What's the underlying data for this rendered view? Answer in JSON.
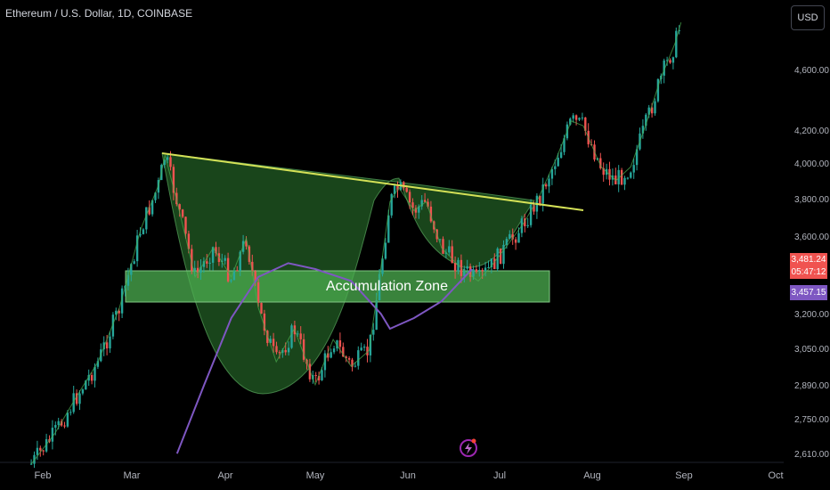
{
  "header": {
    "symbol_title": "Ethereum / U.S. Dollar, 1D, COINBASE",
    "currency_button": "USD"
  },
  "badges": {
    "last_price": "3,481.24",
    "countdown": "05:47:12",
    "ma_value": "3,457.15"
  },
  "annotations": {
    "zone_label": "Accumulation Zone"
  },
  "colors": {
    "background": "#000000",
    "up": "#26a69a",
    "down": "#ef5350",
    "moving_average": "#7e57c2",
    "trendline": "#c9e265",
    "zone_fill": "#4caf50",
    "pattern_fill": "#2e7d32"
  },
  "chart_data": {
    "type": "candlestick",
    "title": "Ethereum / U.S. Dollar, 1D, COINBASE",
    "x_axis": {
      "tick_labels": [
        "Feb",
        "Mar",
        "Apr",
        "May",
        "Jun",
        "Jul",
        "Aug",
        "Sep",
        "Oct"
      ]
    },
    "y_axis": {
      "scale": "log",
      "tick_labels": [
        "4,600.00",
        "4,200.00",
        "4,000.00",
        "3,800.00",
        "3,600.00",
        "3,200.00",
        "3,050.00",
        "2,890.00",
        "2,750.00",
        "2,610.00"
      ],
      "ylim": [
        2560,
        5000
      ]
    },
    "series": [
      {
        "kind": "price",
        "points": [
          [
            "Jan 28",
            2580
          ],
          [
            "Feb 05",
            2700
          ],
          [
            "Feb 12",
            2850
          ],
          [
            "Feb 19",
            3000
          ],
          [
            "Feb 26",
            3250
          ],
          [
            "Mar 04",
            3650
          ],
          [
            "Mar 10",
            3900
          ],
          [
            "Mar 12",
            4070
          ],
          [
            "Mar 16",
            3800
          ],
          [
            "Mar 22",
            3400
          ],
          [
            "Mar 28",
            3550
          ],
          [
            "Apr 03",
            3400
          ],
          [
            "Apr 08",
            3600
          ],
          [
            "Apr 12",
            3250
          ],
          [
            "Apr 18",
            3000
          ],
          [
            "Apr 24",
            3150
          ],
          [
            "May 01",
            2900
          ],
          [
            "May 07",
            3100
          ],
          [
            "May 13",
            2980
          ],
          [
            "May 19",
            3050
          ],
          [
            "May 23",
            3450
          ],
          [
            "May 26",
            3800
          ],
          [
            "May 29",
            3880
          ],
          [
            "Jun 03",
            3750
          ],
          [
            "Jun 07",
            3800
          ],
          [
            "Jun 12",
            3550
          ],
          [
            "Jun 18",
            3450
          ],
          [
            "Jun 24",
            3380
          ],
          [
            "Jun 28",
            3450
          ],
          [
            "Jul 03",
            3550
          ],
          [
            "Jul 09",
            3680
          ],
          [
            "Jul 14",
            3820
          ],
          [
            "Jul 20",
            4050
          ],
          [
            "Jul 25",
            4280
          ],
          [
            "Jul 29",
            4250
          ],
          [
            "Aug 04",
            4000
          ],
          [
            "Aug 09",
            3920
          ],
          [
            "Aug 14",
            4000
          ],
          [
            "Aug 19",
            4250
          ],
          [
            "Aug 24",
            4550
          ],
          [
            "Aug 29",
            4800
          ],
          [
            "Aug 31",
            4950
          ]
        ]
      },
      {
        "kind": "moving_average",
        "points": [
          [
            "Mar 16",
            2620
          ],
          [
            "Mar 25",
            2900
          ],
          [
            "Apr 03",
            3200
          ],
          [
            "Apr 12",
            3400
          ],
          [
            "Apr 22",
            3470
          ],
          [
            "May 01",
            3440
          ],
          [
            "May 13",
            3380
          ],
          [
            "May 23",
            3220
          ],
          [
            "May 26",
            3150
          ],
          [
            "Jun 03",
            3200
          ],
          [
            "Jun 12",
            3280
          ],
          [
            "Jun 22",
            3440
          ]
        ]
      }
    ],
    "trendline": {
      "from": [
        "Mar 12",
        4070
      ],
      "to": [
        "Jul 31",
        3820
      ]
    },
    "accumulation_zone": {
      "low": 3230,
      "high": 3430,
      "from": "Feb 28",
      "to": "Jun 28"
    },
    "last_price": 3481.24,
    "ma_last": 3457.15
  }
}
